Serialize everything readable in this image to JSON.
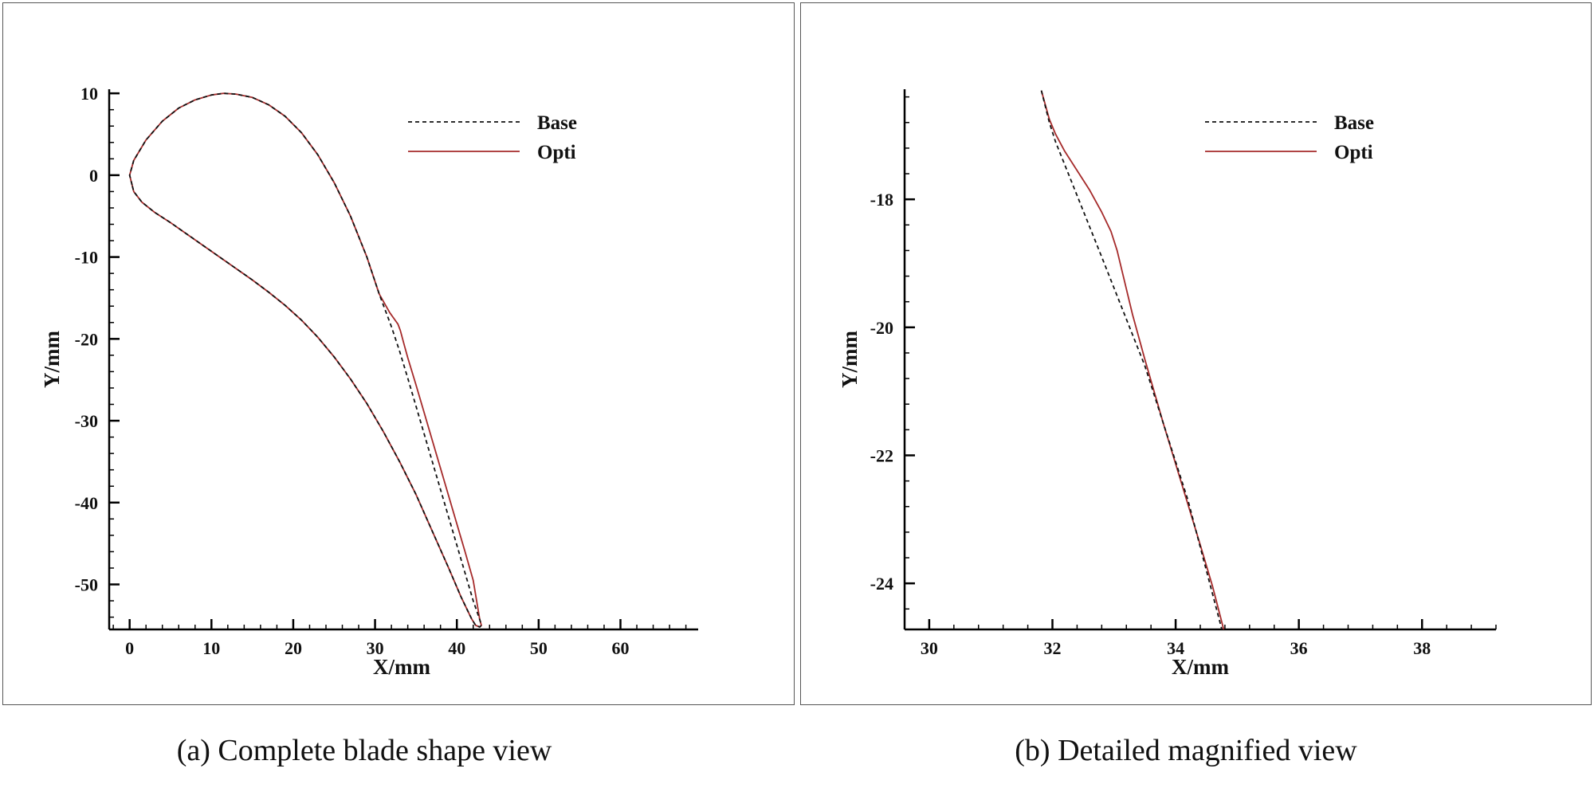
{
  "colors": {
    "base": "#111111",
    "opti": "#a52a2a",
    "axis": "#000000"
  },
  "captions": {
    "a": "(a) Complete blade shape view",
    "b": "(b) Detailed magnified view"
  },
  "chart_data": [
    {
      "id": "a",
      "type": "line",
      "xlabel": "X/mm",
      "ylabel": "Y/mm",
      "xlim": [
        -2.5,
        69.5
      ],
      "ylim": [
        -55.5,
        10.5
      ],
      "xticks": [
        0,
        10,
        20,
        30,
        40,
        50,
        60
      ],
      "yticks": [
        10,
        0,
        -10,
        -20,
        -30,
        -40,
        -50
      ],
      "xminor_step": 2,
      "yminor_step": 2,
      "legend": {
        "position": "top-right",
        "entries": [
          "Base",
          "Opti"
        ]
      },
      "series": [
        {
          "name": "Base",
          "style": "dashed",
          "x": [
            0.3,
            0.0,
            0.5,
            2,
            4,
            6,
            8,
            10,
            11.5,
            13,
            15,
            17,
            19,
            21,
            23,
            25,
            27,
            29,
            30.5,
            32,
            33,
            34,
            35,
            36,
            37,
            38,
            39,
            40,
            41,
            42,
            42.8,
            43,
            42.8,
            42.3,
            41.8,
            40.5,
            39,
            37,
            35,
            33,
            31,
            29,
            27,
            25,
            23,
            21,
            19,
            17,
            15,
            13,
            11,
            9,
            7,
            5,
            3,
            1.5,
            0.5,
            0.3
          ],
          "y": [
            -1.2,
            0.0,
            1.8,
            4.3,
            6.6,
            8.2,
            9.2,
            9.8,
            10.0,
            9.9,
            9.5,
            8.6,
            7.2,
            5.2,
            2.5,
            -0.9,
            -5.0,
            -10.0,
            -14.5,
            -18.5,
            -21.5,
            -24.8,
            -28.2,
            -31.6,
            -35.0,
            -38.4,
            -41.8,
            -45.2,
            -48.6,
            -52.0,
            -54.3,
            -55.0,
            -55.2,
            -55.0,
            -54.2,
            -51.5,
            -48.0,
            -43.5,
            -39.0,
            -35.0,
            -31.3,
            -27.9,
            -24.9,
            -22.2,
            -19.8,
            -17.7,
            -15.9,
            -14.3,
            -12.8,
            -11.4,
            -10.0,
            -8.6,
            -7.2,
            -5.8,
            -4.5,
            -3.3,
            -2.0,
            -1.2
          ]
        },
        {
          "name": "Opti",
          "style": "solid",
          "x": [
            0.3,
            0.0,
            0.5,
            2,
            4,
            6,
            8,
            10,
            11.5,
            13,
            15,
            17,
            19,
            21,
            23,
            25,
            27,
            29,
            30.5,
            31.8,
            32.3,
            32.8,
            33.1,
            33.5,
            34,
            35,
            36,
            37,
            38,
            39,
            40,
            41,
            42,
            42.8,
            43,
            42.8,
            42.3,
            41.8,
            40.5,
            39,
            37,
            35,
            33,
            31,
            29,
            27,
            25,
            23,
            21,
            19,
            17,
            15,
            13,
            11,
            9,
            7,
            5,
            3,
            1.5,
            0.5,
            0.3
          ],
          "y": [
            -1.2,
            0.0,
            1.8,
            4.3,
            6.6,
            8.2,
            9.2,
            9.8,
            10.0,
            9.9,
            9.5,
            8.6,
            7.2,
            5.2,
            2.5,
            -0.9,
            -5.0,
            -10.0,
            -14.5,
            -16.8,
            -17.5,
            -18.2,
            -19.0,
            -20.5,
            -22.3,
            -25.6,
            -29.0,
            -32.4,
            -35.8,
            -39.2,
            -42.6,
            -46.0,
            -49.5,
            -54.3,
            -55.0,
            -55.2,
            -55.0,
            -54.2,
            -51.5,
            -48.0,
            -43.5,
            -39.0,
            -35.0,
            -31.3,
            -27.9,
            -24.9,
            -22.2,
            -19.8,
            -17.7,
            -15.9,
            -14.3,
            -12.8,
            -11.4,
            -10.0,
            -8.6,
            -7.2,
            -5.8,
            -4.5,
            -3.3,
            -2.0,
            -1.2
          ]
        }
      ]
    },
    {
      "id": "b",
      "type": "line",
      "xlabel": "X/mm",
      "ylabel": "Y/mm",
      "xlim": [
        29.6,
        39.2
      ],
      "ylim": [
        -24.72,
        -16.28
      ],
      "xticks": [
        30,
        32,
        34,
        36,
        38
      ],
      "yticks": [
        -18,
        -20,
        -22,
        -24
      ],
      "xminor_step": 0.4,
      "yminor_step": 0.4,
      "legend": {
        "position": "top-right",
        "entries": [
          "Base",
          "Opti"
        ]
      },
      "series": [
        {
          "name": "Base",
          "style": "dashed",
          "x": [
            31.82,
            31.95,
            32.05,
            32.3,
            32.8,
            33.5,
            34.2,
            34.75
          ],
          "y": [
            -16.3,
            -16.8,
            -17.1,
            -17.7,
            -18.9,
            -20.6,
            -22.7,
            -24.72
          ]
        },
        {
          "name": "Opti",
          "style": "solid",
          "x": [
            31.82,
            31.95,
            32.05,
            32.2,
            32.4,
            32.6,
            32.8,
            32.95,
            33.05,
            33.15,
            33.3,
            33.5,
            33.8,
            34.1,
            34.4,
            34.6,
            34.78
          ],
          "y": [
            -16.3,
            -16.75,
            -16.98,
            -17.25,
            -17.55,
            -17.85,
            -18.2,
            -18.5,
            -18.8,
            -19.2,
            -19.8,
            -20.5,
            -21.5,
            -22.45,
            -23.4,
            -24.05,
            -24.72
          ]
        }
      ]
    }
  ]
}
